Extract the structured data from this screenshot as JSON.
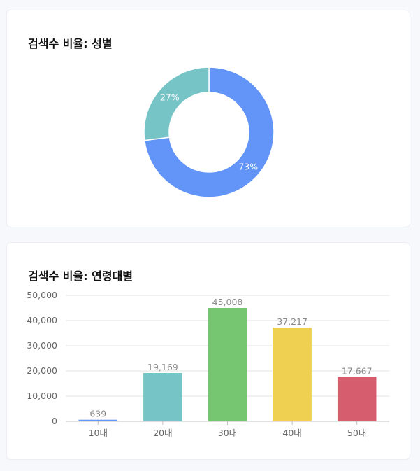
{
  "gender_card": {
    "title": "검색수 비율: 성별"
  },
  "age_card": {
    "title": "검색수 비율: 연령대별"
  },
  "chart_data": [
    {
      "type": "pie",
      "donut": true,
      "slices": [
        {
          "label": "73%",
          "value": 73,
          "color": "#6395f9"
        },
        {
          "label": "27%",
          "value": 27,
          "color": "#76c4c6"
        }
      ]
    },
    {
      "type": "bar",
      "categories": [
        "10대",
        "20대",
        "30대",
        "40대",
        "50대"
      ],
      "values": [
        639,
        19169,
        45008,
        37217,
        17667
      ],
      "value_labels": [
        "639",
        "19,169",
        "45,008",
        "37,217",
        "17,667"
      ],
      "colors": [
        "#6395f9",
        "#76c4c6",
        "#76c570",
        "#efd050",
        "#d65d6e"
      ],
      "ylim": [
        0,
        50000
      ],
      "yticks": [
        0,
        10000,
        20000,
        30000,
        40000,
        50000
      ],
      "ytick_labels": [
        "0",
        "10,000",
        "20,000",
        "30,000",
        "40,000",
        "50,000"
      ],
      "grid": true
    }
  ]
}
